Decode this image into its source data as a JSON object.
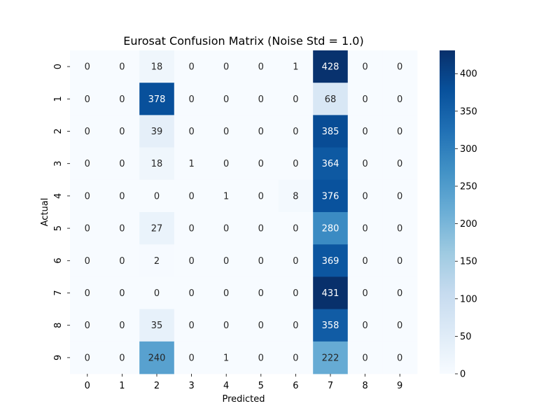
{
  "chart_data": {
    "type": "heatmap",
    "title": "Eurosat Confusion Matrix (Noise Std = 1.0)",
    "xlabel": "Predicted",
    "ylabel": "Actual",
    "x_categories": [
      "0",
      "1",
      "2",
      "3",
      "4",
      "5",
      "6",
      "7",
      "8",
      "9"
    ],
    "y_categories": [
      "0",
      "1",
      "2",
      "3",
      "4",
      "5",
      "6",
      "7",
      "8",
      "9"
    ],
    "values": [
      [
        0,
        0,
        18,
        0,
        0,
        0,
        1,
        428,
        0,
        0
      ],
      [
        0,
        0,
        378,
        0,
        0,
        0,
        0,
        68,
        0,
        0
      ],
      [
        0,
        0,
        39,
        0,
        0,
        0,
        0,
        385,
        0,
        0
      ],
      [
        0,
        0,
        18,
        1,
        0,
        0,
        0,
        364,
        0,
        0
      ],
      [
        0,
        0,
        0,
        0,
        1,
        0,
        8,
        376,
        0,
        0
      ],
      [
        0,
        0,
        27,
        0,
        0,
        0,
        0,
        280,
        0,
        0
      ],
      [
        0,
        0,
        2,
        0,
        0,
        0,
        0,
        369,
        0,
        0
      ],
      [
        0,
        0,
        0,
        0,
        0,
        0,
        0,
        431,
        0,
        0
      ],
      [
        0,
        0,
        35,
        0,
        0,
        0,
        0,
        358,
        0,
        0
      ],
      [
        0,
        0,
        240,
        0,
        1,
        0,
        0,
        222,
        0,
        0
      ]
    ],
    "colormap": "Blues",
    "vmin": 0,
    "vmax": 431,
    "colorbar_ticks": [
      0,
      50,
      100,
      150,
      200,
      250,
      300,
      350,
      400
    ],
    "grid": false
  }
}
